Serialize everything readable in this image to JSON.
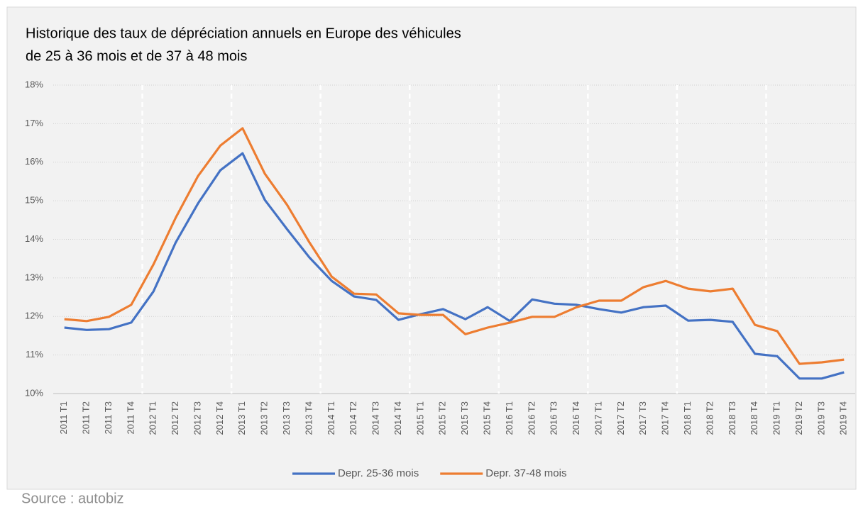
{
  "chart_data": {
    "type": "line",
    "title": "Historique des taux de dépréciation annuels en Europe des véhicules",
    "subtitle": "de 25 à 36 mois et de 37 à 48 mois",
    "source": "Source : autobiz",
    "categories": [
      "2011 T1",
      "2011 T2",
      "2011 T3",
      "2011 T4",
      "2012 T1",
      "2012 T2",
      "2012 T3",
      "2012 T4",
      "2013 T1",
      "2013 T2",
      "2013 T3",
      "2013 T4",
      "2014 T1",
      "2014 T2",
      "2014 T3",
      "2014 T4",
      "2015 T1",
      "2015 T2",
      "2015 T3",
      "2015 T4",
      "2016 T1",
      "2016 T2",
      "2016 T3",
      "2016 T4",
      "2017 T1",
      "2017 T2",
      "2017 T3",
      "2017 T4",
      "2018 T1",
      "2018 T2",
      "2018 T3",
      "2018 T4",
      "2019 T1",
      "2019 T2",
      "2019 T3",
      "2019 T4"
    ],
    "series": [
      {
        "name": "Depr. 25-36 mois",
        "color": "#4472c4",
        "values": [
          11.71,
          11.65,
          11.67,
          11.84,
          12.65,
          13.92,
          14.93,
          15.79,
          16.23,
          15.02,
          14.26,
          13.53,
          12.92,
          12.52,
          12.43,
          11.91,
          12.06,
          12.19,
          11.93,
          12.24,
          11.88,
          12.44,
          12.33,
          12.3,
          12.19,
          12.1,
          12.24,
          12.28,
          11.89,
          11.91,
          11.86,
          11.03,
          10.97,
          10.39,
          10.39,
          10.55
        ]
      },
      {
        "name": "Depr. 37-48 mois",
        "color": "#ed7d31",
        "values": [
          11.93,
          11.88,
          11.99,
          12.3,
          13.35,
          14.56,
          15.64,
          16.43,
          16.88,
          15.7,
          14.89,
          13.92,
          13.03,
          12.59,
          12.57,
          12.08,
          12.04,
          12.04,
          11.54,
          11.71,
          11.84,
          11.99,
          11.99,
          12.24,
          12.41,
          12.41,
          12.76,
          12.92,
          12.72,
          12.65,
          12.72,
          11.78,
          11.62,
          10.77,
          10.81,
          10.88
        ]
      }
    ],
    "ylim": [
      10,
      18
    ],
    "yticks": [
      {
        "value": 10,
        "label": "10%"
      },
      {
        "value": 11,
        "label": "11%"
      },
      {
        "value": 12,
        "label": "12%"
      },
      {
        "value": 13,
        "label": "13%"
      },
      {
        "value": 14,
        "label": "14%"
      },
      {
        "value": 15,
        "label": "15%"
      },
      {
        "value": 16,
        "label": "16%"
      },
      {
        "value": 17,
        "label": "17%"
      },
      {
        "value": 18,
        "label": "18%"
      }
    ],
    "grid": true,
    "legend": "bottom"
  }
}
